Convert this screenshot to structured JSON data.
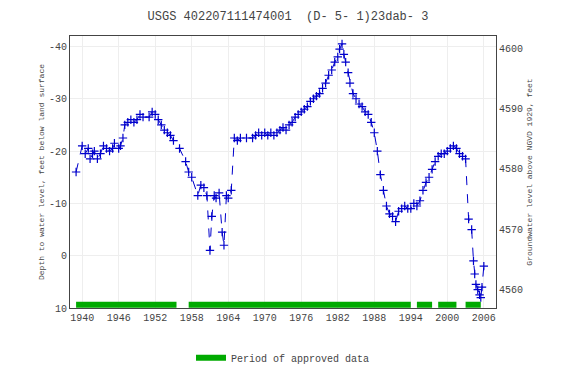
{
  "chart_data": {
    "type": "line",
    "title": "USGS 402207111474001  (D- 5- 1)23dab- 3",
    "ylabel": "Depth to water level, feet below land surface",
    "y2label": "Groundwater level above NGVD 1929, feet",
    "xlim": [
      1938,
      2008
    ],
    "ylim": [
      10,
      -42
    ],
    "y2lim": [
      4557.0,
      4602.0
    ],
    "xticks": [
      1940,
      1946,
      1952,
      1958,
      1964,
      1970,
      1976,
      1982,
      1988,
      1994,
      2000,
      2006
    ],
    "yticks": [
      -40,
      -30,
      -20,
      -10,
      0,
      10
    ],
    "y2ticks": [
      4560,
      4570,
      4580,
      4590,
      4600
    ],
    "grid": true,
    "legend": "bottom",
    "x": [
      1939.0,
      1940.0,
      1940.5,
      1941.0,
      1941.3,
      1941.7,
      1942.0,
      1942.5,
      1943.0,
      1943.5,
      1944.0,
      1944.5,
      1945.0,
      1945.3,
      1946.0,
      1946.3,
      1946.7,
      1947.0,
      1947.5,
      1948.0,
      1948.5,
      1949.0,
      1949.5,
      1950.0,
      1951.0,
      1951.5,
      1952.0,
      1952.5,
      1953.0,
      1953.5,
      1954.0,
      1954.5,
      1955.0,
      1956.0,
      1957.0,
      1957.5,
      1958.0,
      1959.0,
      1959.5,
      1960.0,
      1960.5,
      1961.0,
      1961.3,
      1961.7,
      1962.0,
      1962.5,
      1963.0,
      1963.3,
      1963.7,
      1964.0,
      1964.5,
      1965.0,
      1965.5,
      1966.0,
      1967.0,
      1968.0,
      1968.5,
      1969.0,
      1969.5,
      1970.0,
      1970.5,
      1971.0,
      1971.5,
      1972.0,
      1972.5,
      1973.0,
      1973.5,
      1974.0,
      1974.5,
      1975.0,
      1975.5,
      1976.0,
      1976.5,
      1977.0,
      1977.5,
      1978.0,
      1978.5,
      1979.0,
      1979.5,
      1980.0,
      1980.5,
      1981.0,
      1981.5,
      1982.0,
      1982.3,
      1982.7,
      1983.0,
      1983.3,
      1983.7,
      1984.0,
      1984.5,
      1985.0,
      1985.5,
      1986.0,
      1986.5,
      1987.0,
      1987.5,
      1988.0,
      1988.5,
      1989.0,
      1989.5,
      1990.0,
      1990.5,
      1991.0,
      1991.5,
      1992.0,
      1992.5,
      1993.0,
      1993.5,
      1994.0,
      1994.5,
      1995.0,
      1995.5,
      1996.0,
      1996.5,
      1997.0,
      1997.5,
      1998.0,
      1998.5,
      1999.0,
      1999.5,
      2000.0,
      2000.5,
      2001.0,
      2001.5,
      2002.0,
      2002.5,
      2003.0,
      2003.5,
      2004.0,
      2004.3,
      2004.5,
      2004.7,
      2005.0,
      2005.3,
      2005.5,
      2005.7,
      2006.0
    ],
    "series": [
      {
        "type": "line",
        "color": "#0000cc",
        "marker": "plus",
        "line_style": "dashed",
        "values": [
          -16.0,
          -21.0,
          -19.5,
          -20.5,
          -18.5,
          -19.5,
          -20.0,
          -18.5,
          -19.5,
          -21.0,
          -20.5,
          -20.0,
          -20.5,
          -21.5,
          -20.5,
          -21.0,
          -22.5,
          -25.0,
          -25.5,
          -26.0,
          -25.5,
          -26.0,
          -27.0,
          -26.5,
          -26.5,
          -27.5,
          -27.0,
          -26.0,
          -25.0,
          -24.0,
          -23.5,
          -23.0,
          -22.0,
          -20.5,
          -18.0,
          -16.0,
          -15.0,
          -11.5,
          -13.5,
          -13.0,
          -11.5,
          -1.0,
          -7.5,
          -11.5,
          -11.0,
          -12.0,
          -4.5,
          -2.0,
          -11.5,
          -11.0,
          -12.5,
          -22.5,
          -22.0,
          -22.5,
          -22.5,
          -22.5,
          -23.0,
          -23.5,
          -23.0,
          -23.5,
          -23.0,
          -23.5,
          -23.0,
          -23.5,
          -24.0,
          -24.5,
          -24.0,
          -25.0,
          -25.5,
          -26.5,
          -27.0,
          -27.5,
          -28.0,
          -28.5,
          -29.5,
          -30.0,
          -30.5,
          -31.0,
          -32.0,
          -33.0,
          -34.5,
          -35.5,
          -37.0,
          -38.0,
          -39.5,
          -40.5,
          -38.5,
          -37.0,
          -35.0,
          -33.0,
          -31.0,
          -30.0,
          -29.0,
          -28.5,
          -27.5,
          -27.0,
          -25.5,
          -23.5,
          -20.0,
          -15.5,
          -12.5,
          -9.5,
          -8.0,
          -7.5,
          -6.5,
          -8.5,
          -9.0,
          -9.5,
          -9.0,
          -9.0,
          -10.0,
          -9.5,
          -10.5,
          -12.5,
          -14.0,
          -15.0,
          -16.5,
          -18.0,
          -19.0,
          -19.5,
          -19.5,
          -20.0,
          -20.5,
          -21.0,
          -20.5,
          -19.5,
          -19.0,
          -18.5,
          -7.0,
          -5.0,
          1.0,
          3.5,
          5.5,
          6.5,
          7.5,
          8.0,
          6.0,
          2.0
        ]
      },
      {
        "type": "span",
        "name": "Period of approved data",
        "color": "#00aa00",
        "segments": [
          [
            1939.0,
            1955.5
          ],
          [
            1957.5,
            1994.0
          ],
          [
            1995.0,
            1997.5
          ],
          [
            1998.5,
            2001.5
          ],
          [
            2003.0,
            2005.5
          ]
        ]
      }
    ]
  }
}
